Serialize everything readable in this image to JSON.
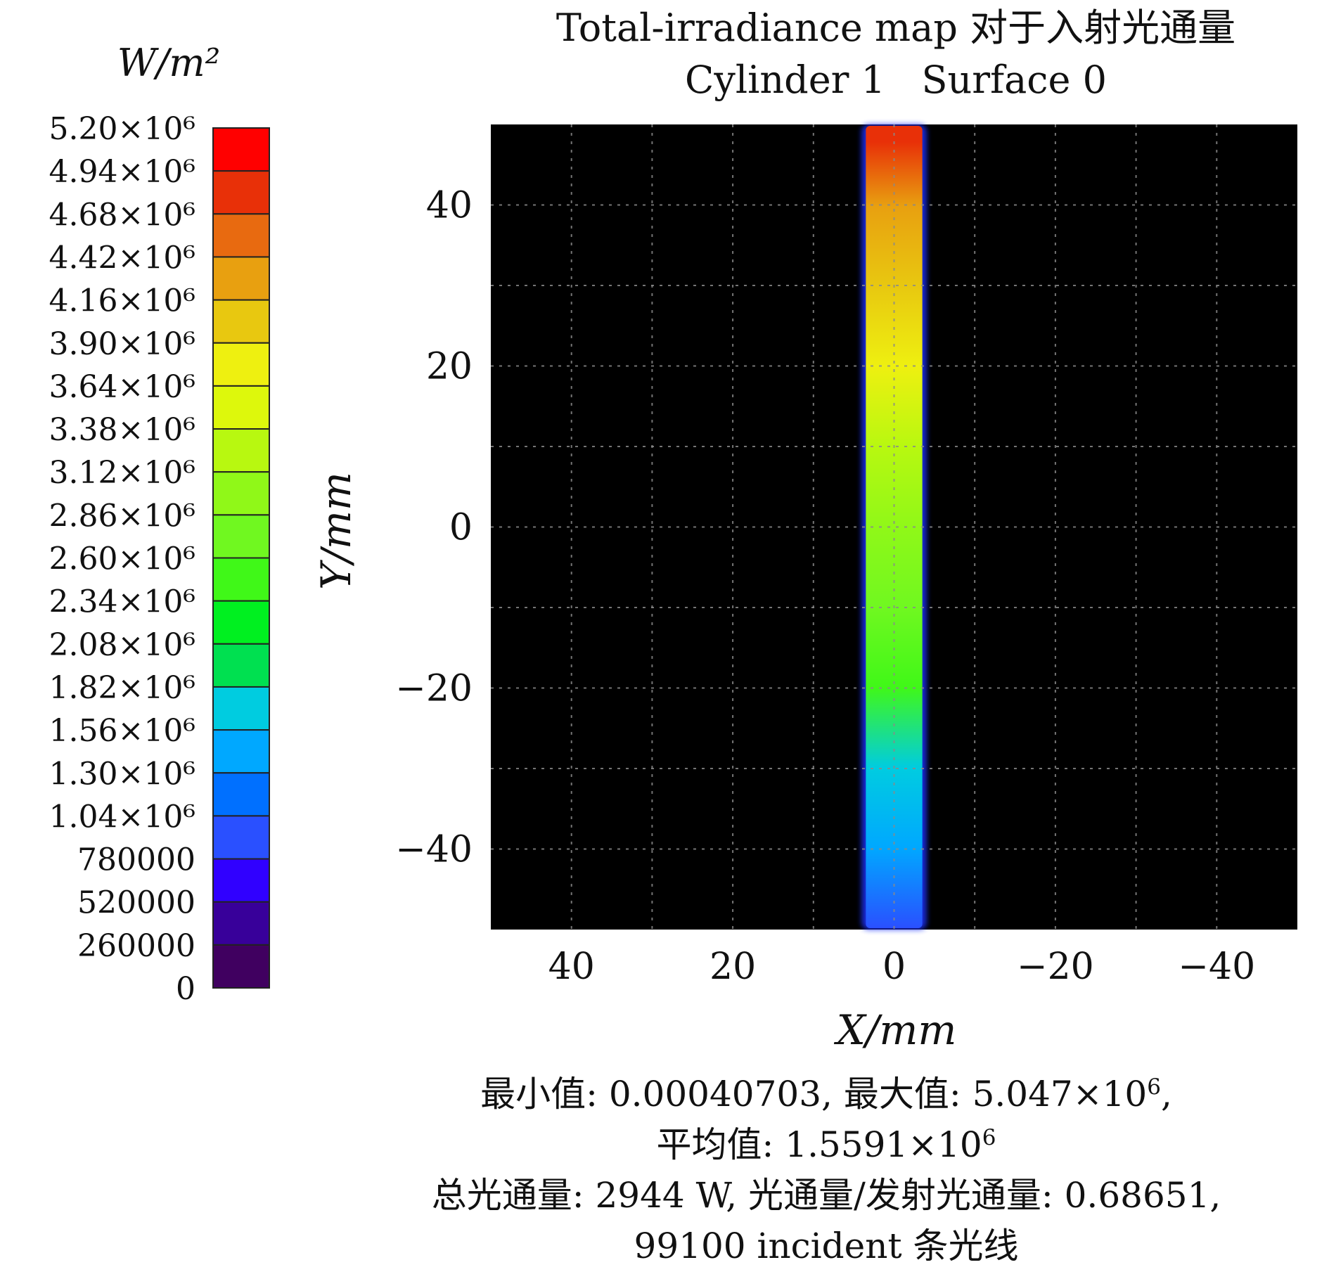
{
  "chart_data": {
    "type": "heatmap",
    "title": "Total-irradiance map 对于入射光通量",
    "subtitle": "Cylinder 1   Surface 0",
    "xlabel": "X/mm",
    "ylabel": "Y/mm",
    "xlim": [
      50,
      -50
    ],
    "ylim": [
      -50,
      50
    ],
    "x_ticks": [
      "40",
      "20",
      "0",
      "−20",
      "−40"
    ],
    "y_ticks": [
      "40",
      "20",
      "0",
      "−20",
      "−40"
    ],
    "x_tick_values": [
      40,
      20,
      0,
      -20,
      -40
    ],
    "y_tick_values": [
      40,
      20,
      0,
      -20,
      -40
    ],
    "grid": true,
    "background_color": "#000000",
    "stripe_x_range": [
      -3.5,
      3.5
    ],
    "stripe_profile": {
      "y": [
        -50,
        -40,
        -30,
        -20,
        -10,
        0,
        10,
        20,
        30,
        40,
        48
      ],
      "value": [
        800000,
        1300000,
        1800000,
        2400000,
        2700000,
        3000000,
        3300000,
        3700000,
        4000000,
        4300000,
        4800000
      ]
    },
    "colorbar": {
      "unit": "W/m²",
      "tick_labels": [
        "5.20×10⁶",
        "4.94×10⁶",
        "4.68×10⁶",
        "4.42×10⁶",
        "4.16×10⁶",
        "3.90×10⁶",
        "3.64×10⁶",
        "3.38×10⁶",
        "3.12×10⁶",
        "2.86×10⁶",
        "2.60×10⁶",
        "2.34×10⁶",
        "2.08×10⁶",
        "1.82×10⁶",
        "1.56×10⁶",
        "1.30×10⁶",
        "1.04×10⁶",
        "780000",
        "520000",
        "260000",
        "0"
      ],
      "tick_values": [
        5200000,
        4940000,
        4680000,
        4420000,
        4160000,
        3900000,
        3640000,
        3380000,
        3120000,
        2860000,
        2600000,
        2340000,
        2080000,
        1820000,
        1560000,
        1300000,
        1040000,
        780000,
        520000,
        260000,
        0
      ],
      "colors": [
        "#ff0000",
        "#e83008",
        "#e86a10",
        "#e8a010",
        "#e8c810",
        "#eef010",
        "#ddf80c",
        "#b8f810",
        "#90f818",
        "#70f820",
        "#40f818",
        "#00f020",
        "#00e050",
        "#00cce0",
        "#00a8ff",
        "#0070ff",
        "#2a50ff",
        "#3000ff",
        "#38009a",
        "#400060"
      ]
    }
  },
  "stats": {
    "line1a": "最小值: 0.00040703, 最大值: 5.047×10",
    "line1_exp": "6",
    "line1b": ",",
    "line2a": "平均值: 1.5591×10",
    "line2_exp": "6",
    "line3": "总光通量: 2944 W, 光通量/发射光通量: 0.68651,",
    "line4": "99100 incident 条光线"
  }
}
